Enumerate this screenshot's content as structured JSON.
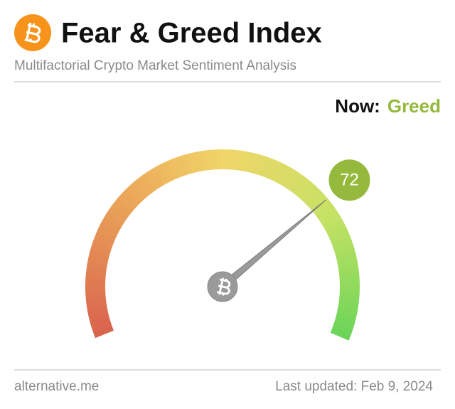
{
  "chart_data": {
    "type": "gauge",
    "title": "Fear & Greed Index",
    "subtitle": "Multifactorial Crypto Market Sentiment Analysis",
    "now_label": "Now:",
    "status": "Greed",
    "status_color": "#94b93c",
    "value": 72,
    "ylim": [
      0,
      100
    ],
    "source": "alternative.me",
    "updated": "Last updated: Feb 9, 2024"
  }
}
